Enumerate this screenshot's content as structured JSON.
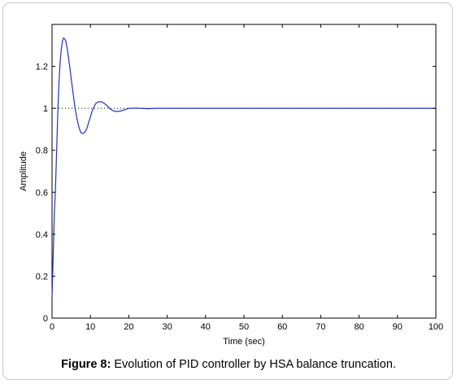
{
  "caption": {
    "label": "Figure 8:",
    "text": " Evolution of PID controller by HSA balance truncation."
  },
  "chart_data": {
    "type": "line",
    "title": "",
    "xlabel": "Time (sec)",
    "ylabel": "Amplitude",
    "xlim": [
      0,
      100
    ],
    "ylim": [
      0,
      1.4
    ],
    "xticks": [
      0,
      10,
      20,
      30,
      40,
      50,
      60,
      70,
      80,
      90,
      100
    ],
    "yticks": [
      0,
      0.2,
      0.4,
      0.6,
      0.8,
      1,
      1.2
    ],
    "ytick_labels": [
      "0",
      "0.2",
      "0.4",
      "0.6",
      "0.8",
      "1",
      "1.2"
    ],
    "grid": false,
    "reference_line": {
      "y": 1,
      "style": "dotted",
      "color": "#000000"
    },
    "series": [
      {
        "color": "#1f2fd0",
        "x": [
          0,
          0.3,
          0.6,
          0.9,
          1.2,
          1.5,
          1.8,
          2.1,
          2.4,
          2.7,
          3.0,
          3.3,
          3.6,
          3.8,
          4.0,
          4.3,
          4.6,
          5.0,
          5.5,
          6.0,
          6.5,
          7.0,
          7.5,
          8.0,
          8.5,
          9.0,
          9.5,
          10.0,
          10.5,
          11.0,
          11.5,
          12.0,
          12.5,
          13.0,
          13.5,
          14.0,
          14.5,
          15.0,
          15.5,
          16.0,
          16.5,
          17.0,
          17.5,
          18.0,
          18.5,
          19.0,
          19.5,
          20.0,
          21.0,
          22.0,
          23.0,
          24.0,
          25.0,
          26.0,
          27.0,
          28.0,
          30.0,
          35.0,
          40.0,
          50.0,
          60.0,
          70.0,
          80.0,
          90.0,
          100.0
        ],
        "y": [
          0.1,
          0.3,
          0.5,
          0.62,
          0.8,
          0.98,
          1.12,
          1.22,
          1.28,
          1.32,
          1.335,
          1.33,
          1.32,
          1.3,
          1.28,
          1.24,
          1.2,
          1.14,
          1.07,
          1.0,
          0.95,
          0.91,
          0.885,
          0.88,
          0.885,
          0.9,
          0.93,
          0.96,
          0.99,
          1.01,
          1.025,
          1.03,
          1.032,
          1.03,
          1.025,
          1.018,
          1.01,
          1.0,
          0.993,
          0.988,
          0.985,
          0.985,
          0.986,
          0.988,
          0.991,
          0.994,
          0.997,
          1.0,
          1.0,
          1.001,
          1.0,
          0.999,
          0.998,
          0.999,
          1.0,
          1.0,
          1.0,
          1.0,
          1.0,
          1.0,
          1.0,
          1.0,
          1.0,
          1.0,
          1.0
        ]
      }
    ]
  }
}
